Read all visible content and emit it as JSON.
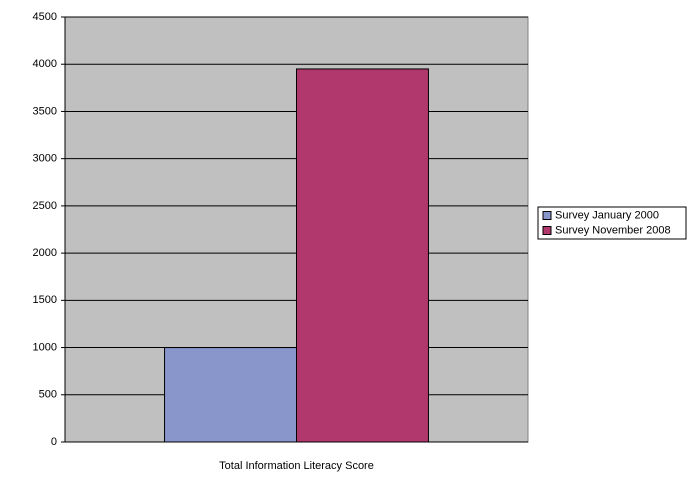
{
  "chart_data": {
    "type": "bar",
    "categories": [
      "Total Information Literacy Score"
    ],
    "series": [
      {
        "name": "Survey January 2000",
        "color": "#8896cc",
        "values": [
          1000
        ]
      },
      {
        "name": "Survey November 2008",
        "color": "#b0386c",
        "values": [
          3950
        ]
      }
    ],
    "ylim": [
      0,
      4500
    ],
    "yticks": [
      0,
      500,
      1000,
      1500,
      2000,
      2500,
      3000,
      3500,
      4000,
      4500
    ],
    "grid": true,
    "legend": "right"
  }
}
